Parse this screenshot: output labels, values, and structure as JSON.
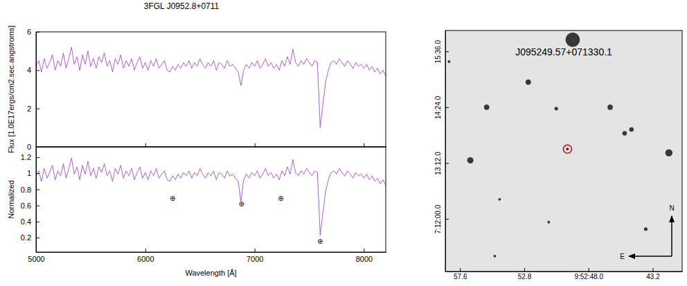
{
  "chart_data": [
    {
      "type": "line",
      "title": "3FGL J0952.8+0711",
      "y_label": "Flux [1.0E17ergs/cm2.sec.angstroms]",
      "x": [
        5000,
        5025,
        5050,
        5075,
        5100,
        5125,
        5150,
        5175,
        5200,
        5225,
        5250,
        5275,
        5300,
        5325,
        5350,
        5375,
        5400,
        5425,
        5450,
        5475,
        5500,
        5525,
        5550,
        5575,
        5600,
        5625,
        5650,
        5675,
        5700,
        5725,
        5750,
        5775,
        5800,
        5825,
        5850,
        5875,
        5900,
        5925,
        5950,
        5975,
        6000,
        6025,
        6050,
        6075,
        6100,
        6125,
        6150,
        6175,
        6200,
        6225,
        6250,
        6275,
        6300,
        6325,
        6350,
        6375,
        6400,
        6425,
        6450,
        6475,
        6500,
        6525,
        6550,
        6575,
        6600,
        6625,
        6650,
        6675,
        6700,
        6725,
        6750,
        6775,
        6800,
        6825,
        6850,
        6875,
        6900,
        6925,
        6950,
        6975,
        7000,
        7025,
        7050,
        7075,
        7100,
        7125,
        7150,
        7175,
        7200,
        7225,
        7250,
        7275,
        7300,
        7325,
        7350,
        7375,
        7400,
        7425,
        7450,
        7475,
        7500,
        7525,
        7550,
        7575,
        7600,
        7625,
        7650,
        7675,
        7700,
        7725,
        7750,
        7775,
        7800,
        7825,
        7850,
        7875,
        7900,
        7925,
        7950,
        7975,
        8000,
        8025,
        8050,
        8075,
        8100,
        8125,
        8150,
        8175,
        8200
      ],
      "series": [
        {
          "color": "#9932cc",
          "values": [
            4.2,
            4.5,
            3.9,
            4.6,
            4.1,
            4.4,
            4.8,
            4.0,
            4.5,
            4.2,
            4.9,
            4.1,
            4.6,
            5.2,
            4.3,
            4.7,
            4.0,
            4.8,
            4.3,
            5.0,
            4.2,
            4.6,
            4.1,
            4.7,
            4.4,
            4.9,
            4.2,
            4.5,
            3.9,
            4.6,
            4.3,
            4.8,
            4.1,
            4.5,
            4.2,
            4.6,
            4.0,
            4.4,
            4.7,
            4.1,
            4.4,
            4.0,
            4.5,
            4.2,
            4.6,
            4.1,
            4.3,
            4.5,
            4.0,
            3.9,
            4.2,
            4.0,
            4.3,
            4.1,
            4.4,
            4.2,
            4.5,
            4.1,
            4.4,
            4.2,
            4.6,
            4.3,
            4.1,
            4.4,
            4.2,
            4.5,
            4.0,
            4.4,
            4.3,
            4.1,
            4.5,
            4.2,
            4.3,
            4.1,
            3.9,
            3.2,
            4.0,
            4.3,
            4.1,
            4.4,
            4.2,
            4.5,
            4.1,
            4.3,
            4.6,
            4.2,
            4.4,
            4.1,
            4.3,
            4.0,
            4.5,
            4.2,
            4.7,
            4.3,
            5.1,
            4.4,
            4.2,
            4.5,
            4.3,
            4.6,
            4.4,
            4.2,
            4.5,
            4.4,
            1.0,
            2.2,
            3.4,
            4.0,
            4.4,
            4.5,
            4.3,
            4.6,
            4.4,
            4.2,
            4.5,
            4.3,
            4.1,
            4.4,
            4.2,
            4.3,
            4.1,
            4.3,
            4.0,
            4.2,
            3.9,
            4.1,
            3.8,
            4.0,
            3.7
          ]
        }
      ],
      "xlim": [
        5000,
        8200
      ],
      "xticks": [
        5000,
        6000,
        7000,
        8000
      ],
      "ylim": [
        0,
        6
      ],
      "yticks": [
        0,
        2,
        4,
        6
      ],
      "tick_labels": "y"
    },
    {
      "type": "line",
      "x_label": "Wavelength [Å]",
      "y_label": "Normalized",
      "x": [
        5000,
        5025,
        5050,
        5075,
        5100,
        5125,
        5150,
        5175,
        5200,
        5225,
        5250,
        5275,
        5300,
        5325,
        5350,
        5375,
        5400,
        5425,
        5450,
        5475,
        5500,
        5525,
        5550,
        5575,
        5600,
        5625,
        5650,
        5675,
        5700,
        5725,
        5750,
        5775,
        5800,
        5825,
        5850,
        5875,
        5900,
        5925,
        5950,
        5975,
        6000,
        6025,
        6050,
        6075,
        6100,
        6125,
        6150,
        6175,
        6200,
        6225,
        6250,
        6275,
        6300,
        6325,
        6350,
        6375,
        6400,
        6425,
        6450,
        6475,
        6500,
        6525,
        6550,
        6575,
        6600,
        6625,
        6650,
        6675,
        6700,
        6725,
        6750,
        6775,
        6800,
        6825,
        6850,
        6875,
        6900,
        6925,
        6950,
        6975,
        7000,
        7025,
        7050,
        7075,
        7100,
        7125,
        7150,
        7175,
        7200,
        7225,
        7250,
        7275,
        7300,
        7325,
        7350,
        7375,
        7400,
        7425,
        7450,
        7475,
        7500,
        7525,
        7550,
        7575,
        7600,
        7625,
        7650,
        7675,
        7700,
        7725,
        7750,
        7775,
        7800,
        7825,
        7850,
        7875,
        7900,
        7925,
        7950,
        7975,
        8000,
        8025,
        8050,
        8075,
        8100,
        8125,
        8150,
        8175,
        8200
      ],
      "series": [
        {
          "color": "#9932cc",
          "values": [
            0.97,
            1.03,
            0.9,
            1.06,
            0.94,
            1.01,
            1.1,
            0.92,
            1.03,
            0.97,
            1.12,
            0.94,
            1.06,
            1.19,
            0.99,
            1.08,
            0.92,
            1.1,
            0.99,
            1.15,
            0.97,
            1.06,
            0.94,
            1.08,
            1.01,
            1.12,
            0.97,
            1.03,
            0.9,
            1.06,
            0.99,
            1.1,
            0.94,
            1.03,
            0.97,
            1.06,
            0.92,
            1.01,
            1.08,
            0.94,
            1.01,
            0.92,
            1.03,
            0.97,
            1.06,
            0.94,
            0.99,
            1.03,
            0.92,
            0.9,
            0.97,
            0.92,
            0.99,
            0.94,
            1.01,
            0.97,
            1.03,
            0.94,
            1.01,
            0.97,
            1.06,
            0.99,
            0.94,
            1.01,
            0.97,
            1.03,
            0.92,
            1.01,
            0.99,
            0.94,
            1.03,
            0.97,
            0.99,
            0.94,
            0.9,
            0.65,
            0.92,
            0.99,
            0.94,
            1.01,
            0.97,
            1.03,
            0.94,
            0.99,
            1.06,
            0.97,
            1.01,
            0.94,
            0.99,
            0.92,
            1.03,
            0.97,
            1.08,
            0.99,
            1.17,
            1.01,
            0.97,
            1.03,
            0.99,
            1.06,
            1.01,
            0.97,
            1.03,
            1.01,
            0.23,
            0.51,
            0.78,
            0.92,
            1.01,
            1.03,
            0.99,
            1.06,
            1.01,
            0.97,
            1.03,
            0.99,
            0.94,
            1.01,
            0.97,
            0.99,
            0.94,
            0.99,
            0.92,
            0.97,
            0.9,
            0.94,
            0.87,
            0.92,
            0.85
          ]
        }
      ],
      "xlim": [
        5000,
        8200
      ],
      "xticks": [
        5000,
        6000,
        7000,
        8000
      ],
      "ylim": [
        0.02,
        1.33
      ],
      "yticks": [
        0.2,
        0.4,
        0.6,
        0.8,
        1,
        1.2
      ],
      "annotations": [
        {
          "text": "⊕",
          "x": 6250,
          "y": 0.69
        },
        {
          "text": "⊕",
          "x": 6880,
          "y": 0.62
        },
        {
          "text": "⊕",
          "x": 7240,
          "y": 0.69
        },
        {
          "text": "⊕",
          "x": 7600,
          "y": 0.15
        }
      ]
    },
    {
      "type": "scatter",
      "series": [
        {
          "color": "#1a1a1a",
          "marker": "circle",
          "x": [
            49.18,
            55.61,
            52.5,
            46.38,
            50.41,
            56.83,
            41.99,
            45.3,
            44.79,
            49.57,
            54.64,
            50.97,
            43.72,
            58.42,
            55.0
          ],
          "values": [
            15.85,
            14.4,
            14.94,
            14.4,
            14.37,
            13.26,
            13.42,
            13.84,
            13.92,
            13.5,
            12.42,
            11.93,
            11.78,
            15.38,
            11.2
          ],
          "sizes": [
            8,
            3,
            3,
            3,
            2,
            3.5,
            4,
            2.5,
            2.5,
            1.5,
            1.5,
            1.5,
            2,
            1.5,
            1.5
          ]
        },
        {
          "color": "#e00000",
          "marker": "ring",
          "x": [
            49.57
          ],
          "values": [
            13.5017
          ]
        }
      ],
      "xlim": [
        58.7,
        41.0
      ],
      "xticks": [
        57.6,
        52.8,
        {
          "value": 48.0,
          "label": "9:52:48.0"
        },
        43.2
      ],
      "ylim": [
        10.87,
        16.05
      ],
      "yticks": [
        {
          "value": 12.0,
          "label": "7:12:00.0"
        },
        {
          "value": 13.2,
          "label": "13:12.0"
        },
        {
          "value": 14.4,
          "label": "14:24.0"
        },
        {
          "value": 15.6,
          "label": "15:36.0"
        }
      ],
      "annotations": [
        {
          "text": "J095249.57+071330.1"
        },
        {
          "text": "N"
        },
        {
          "text": "E"
        }
      ]
    }
  ]
}
